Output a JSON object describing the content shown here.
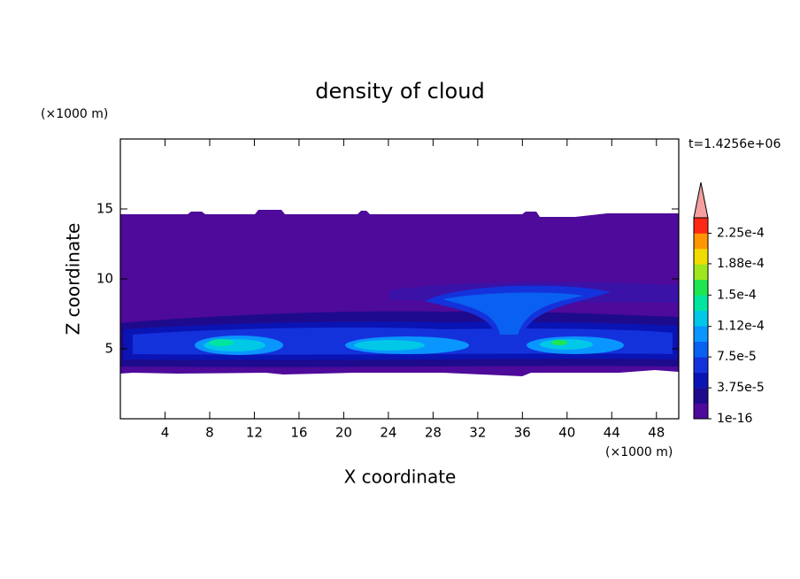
{
  "chart_data": {
    "type": "contour",
    "title": "density of cloud",
    "x_label": "X coordinate",
    "y_label": "Z coordinate",
    "x_unit_label": "(×1000 m)",
    "y_unit_label": "(×1000 m)",
    "time_label": "t=1.4256e+06",
    "xlim": [
      0,
      50
    ],
    "ylim": [
      0,
      20
    ],
    "xticks": [
      4,
      8,
      12,
      16,
      20,
      24,
      28,
      32,
      36,
      40,
      44,
      48
    ],
    "yticks": [
      5,
      10,
      15
    ],
    "colorbar": {
      "lim": [
        1e-16,
        0.00024375
      ],
      "colors": [
        "#4e0a9a",
        "#1e0a8c",
        "#0a14b4",
        "#1432dc",
        "#0a60f0",
        "#0a96ff",
        "#00c8e6",
        "#00e6a0",
        "#1ee650",
        "#a0e61e",
        "#f0dc00",
        "#ff9600",
        "#ff2814"
      ],
      "ticks": [
        {
          "value": 1e-16,
          "label": "1e-16"
        },
        {
          "value": 3.75e-05,
          "label": "3.75e-5"
        },
        {
          "value": 7.5e-05,
          "label": "7.5e-5"
        },
        {
          "value": 0.000112,
          "label": "1.12e-4"
        },
        {
          "value": 0.00015,
          "label": "1.5e-4"
        },
        {
          "value": 0.000188,
          "label": "1.88e-4"
        },
        {
          "value": 0.000225,
          "label": "2.25e-4"
        }
      ],
      "extend_color": "#f4a0a0"
    }
  }
}
